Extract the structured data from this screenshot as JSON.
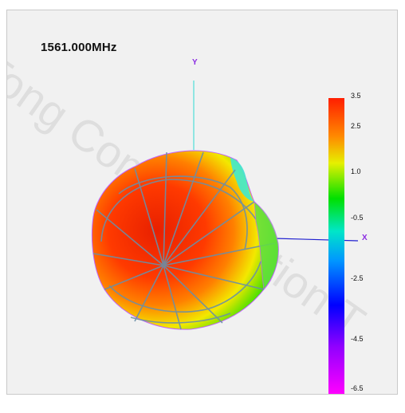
{
  "frequency_label": "1561.000MHz",
  "axes": {
    "y_label": "Y",
    "x_label": "X"
  },
  "colorbar": {
    "ticks": [
      "3.5",
      "2.5",
      "1.0",
      "-0.5",
      "-2.5",
      "-4.5",
      "-6.5"
    ]
  },
  "watermark": "Tong Communication T",
  "chart_data": {
    "type": "heatmap",
    "title": "1561.000MHz",
    "description": "3D antenna radiation pattern viewed from +Z; surface colored by gain",
    "axes_visible": [
      "X",
      "Y"
    ],
    "colorbar": {
      "min": -6.5,
      "max": 3.5,
      "ticks": [
        3.5,
        2.5,
        1.0,
        -0.5,
        -2.5,
        -4.5,
        -6.5
      ],
      "placement": "right"
    },
    "colors": {
      "max": "#ff1e00",
      "high": "#ff8a00",
      "mid_high": "#e6f000",
      "mid": "#00e000",
      "zero": "#00e6c8",
      "low": "#0000ff",
      "min": "#ff00ff"
    },
    "grid": true
  }
}
